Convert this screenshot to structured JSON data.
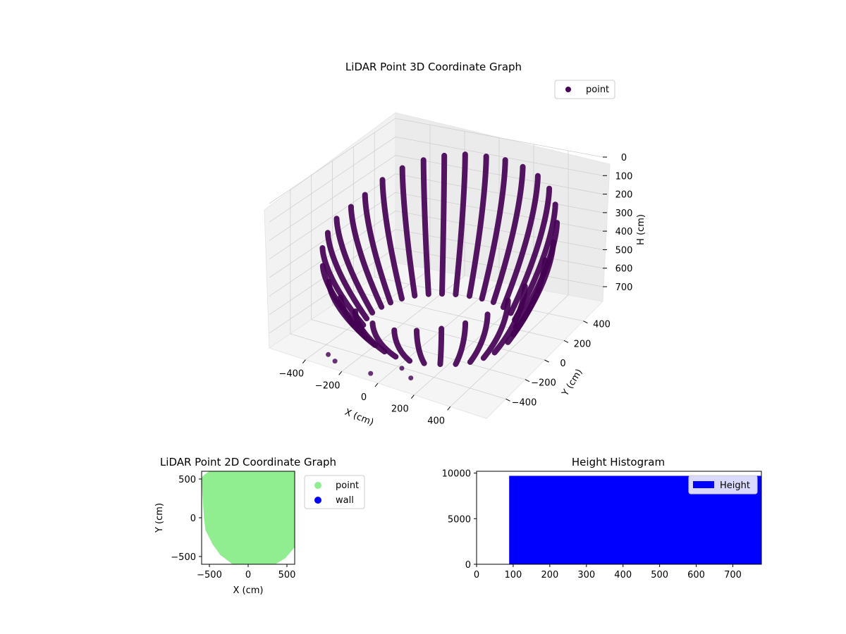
{
  "chart_data": [
    {
      "type": "scatter",
      "title": "LiDAR Point 3D Coordinate Graph",
      "xlabel": "X (cm)",
      "ylabel": "Y (cm)",
      "zlabel": "H (cm)",
      "xlim": [
        -600,
        600
      ],
      "ylim": [
        -600,
        600
      ],
      "zlim": [
        0,
        780
      ],
      "z_inverted": true,
      "xticks": [
        "−400",
        "−200",
        "0",
        "200",
        "400"
      ],
      "yticks": [
        "−400",
        "−200",
        "0",
        "200",
        "400"
      ],
      "zticks": [
        "0",
        "100",
        "200",
        "300",
        "400",
        "500",
        "600",
        "700"
      ],
      "series": [
        {
          "name": "point",
          "color": "#440154",
          "description_of_shape": "curved vertical strands of points forming a bowl/cylinder shape",
          "strands": [
            {
              "x": -560,
              "y": 110,
              "h_top": 280
            },
            {
              "x": -540,
              "y": 210,
              "h_top": 250
            },
            {
              "x": -500,
              "y": 310,
              "h_top": 200
            },
            {
              "x": -440,
              "y": 400,
              "h_top": 160
            },
            {
              "x": -360,
              "y": 470,
              "h_top": 130
            },
            {
              "x": -270,
              "y": 520,
              "h_top": 110
            },
            {
              "x": -170,
              "y": 555,
              "h_top": 100
            },
            {
              "x": -60,
              "y": 575,
              "h_top": 100
            },
            {
              "x": 50,
              "y": 575,
              "h_top": 100
            },
            {
              "x": 160,
              "y": 560,
              "h_top": 110
            },
            {
              "x": 270,
              "y": 520,
              "h_top": 120
            },
            {
              "x": 370,
              "y": 460,
              "h_top": 140
            },
            {
              "x": 450,
              "y": 380,
              "h_top": 170
            },
            {
              "x": 510,
              "y": 290,
              "h_top": 210
            },
            {
              "x": 550,
              "y": 180,
              "h_top": 250
            },
            {
              "x": 570,
              "y": 60,
              "h_top": 280
            },
            {
              "x": -570,
              "y": -10,
              "h_top": 300
            },
            {
              "x": -555,
              "y": -120,
              "h_top": 330
            },
            {
              "x": -520,
              "y": -230,
              "h_top": 360
            },
            {
              "x": -460,
              "y": -330,
              "h_top": 400
            },
            {
              "x": -380,
              "y": -410,
              "h_top": 430
            },
            {
              "x": -280,
              "y": -470,
              "h_top": 460
            },
            {
              "x": -170,
              "y": -520,
              "h_top": 480
            },
            {
              "x": -60,
              "y": -545,
              "h_top": 500
            },
            {
              "x": 60,
              "y": -545,
              "h_top": 500
            },
            {
              "x": 170,
              "y": -520,
              "h_top": 480
            },
            {
              "x": 280,
              "y": -470,
              "h_top": 460
            },
            {
              "x": 380,
              "y": -410,
              "h_top": 430
            },
            {
              "x": 460,
              "y": -330,
              "h_top": 400
            },
            {
              "x": 520,
              "y": -230,
              "h_top": 360
            },
            {
              "x": 555,
              "y": -120,
              "h_top": 330
            }
          ]
        }
      ],
      "legend": {
        "position": "top-right",
        "entries": [
          "point"
        ]
      }
    },
    {
      "type": "scatter",
      "title": "LiDAR Point 2D Coordinate Graph",
      "xlabel": "X (cm)",
      "ylabel": "Y (cm)",
      "xlim": [
        -600,
        600
      ],
      "ylim": [
        -600,
        600
      ],
      "xticks": [
        -500,
        0,
        500
      ],
      "yticks": [
        -500,
        0,
        500
      ],
      "series": [
        {
          "name": "point",
          "color": "#90ee90",
          "outline": [
            [
              -600,
              520
            ],
            [
              -560,
              560
            ],
            [
              -500,
              600
            ],
            [
              600,
              600
            ],
            [
              600,
              -380
            ],
            [
              480,
              -520
            ],
            [
              350,
              -600
            ],
            [
              -200,
              -600
            ],
            [
              -360,
              -480
            ],
            [
              -460,
              -340
            ],
            [
              -550,
              -160
            ],
            [
              -570,
              0
            ],
            [
              -590,
              300
            ]
          ]
        },
        {
          "name": "wall",
          "color": "#0000ff",
          "points": []
        }
      ],
      "legend": {
        "position": "outside-right",
        "entries": [
          "point",
          "wall"
        ]
      }
    },
    {
      "type": "bar",
      "title": "Height Histogram",
      "xlabel": "",
      "ylabel": "",
      "xlim": [
        0,
        778
      ],
      "ylim": [
        0,
        10200
      ],
      "xticks": [
        0,
        100,
        200,
        300,
        400,
        500,
        600,
        700
      ],
      "yticks": [
        0,
        5000,
        10000
      ],
      "series": [
        {
          "name": "Height",
          "color": "#0000ff",
          "bins": [
            {
              "x0": 89,
              "x1": 778,
              "value": 9700
            }
          ]
        }
      ],
      "legend": {
        "position": "top-right",
        "entries": [
          "Height"
        ]
      }
    }
  ]
}
